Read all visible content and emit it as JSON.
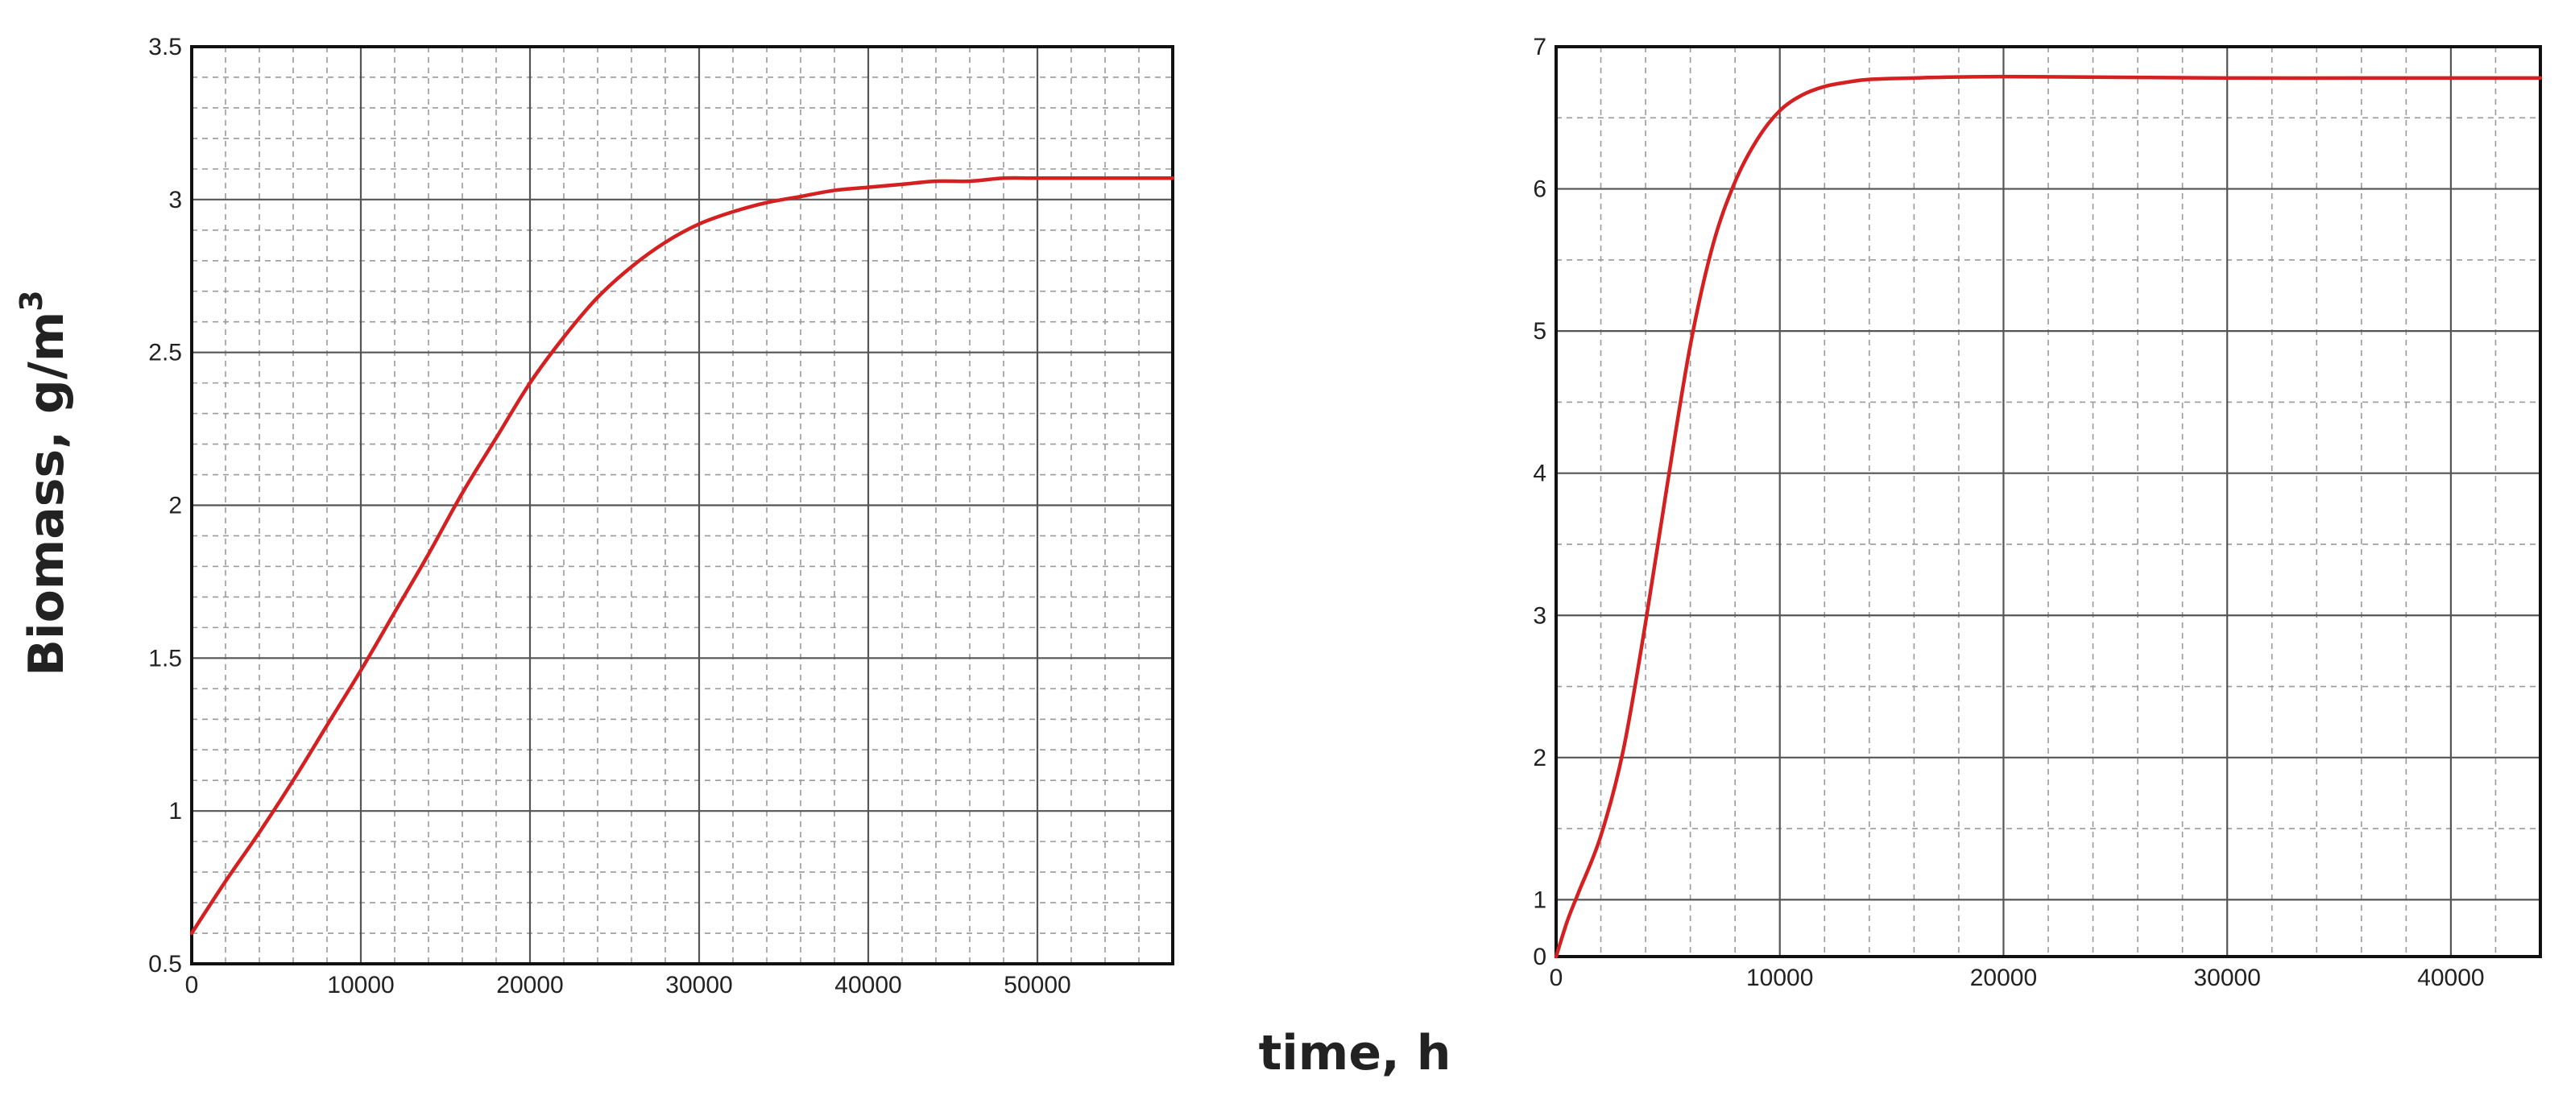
{
  "figure": {
    "ylabel_main": "Biomass, g/m",
    "ylabel_sup": "3",
    "xlabel": "time, h"
  },
  "chart_data": [
    {
      "type": "line",
      "title": "",
      "xlabel": "time, h",
      "ylabel": "Biomass, g/m3",
      "xlim": [
        0,
        58000
      ],
      "ylim": [
        0.5,
        3.5
      ],
      "xticks": [
        0,
        10000,
        20000,
        30000,
        40000,
        50000
      ],
      "yticks": [
        0.5,
        1,
        1.5,
        2,
        2.5,
        3,
        3.5
      ],
      "xtick_labels": [
        "0",
        "10000",
        "20000",
        "30000",
        "40000",
        "50000"
      ],
      "ytick_labels": [
        "0.5",
        "1",
        "1.5",
        "2",
        "2.5",
        "3",
        "3.5"
      ],
      "grid": true,
      "minor_grid_x": 2000,
      "minor_grid_y": 0.1,
      "line_color": "#d42020",
      "series": [
        {
          "x": [
            0,
            2000,
            4000,
            6000,
            8000,
            10000,
            12000,
            14000,
            16000,
            18000,
            20000,
            22000,
            24000,
            26000,
            28000,
            30000,
            32000,
            34000,
            36000,
            38000,
            40000,
            42000,
            44000,
            46000,
            48000,
            50000,
            54000,
            58000
          ],
          "y": [
            0.6,
            0.77,
            0.93,
            1.1,
            1.28,
            1.46,
            1.65,
            1.84,
            2.04,
            2.22,
            2.4,
            2.55,
            2.68,
            2.78,
            2.86,
            2.92,
            2.96,
            2.99,
            3.01,
            3.03,
            3.04,
            3.05,
            3.06,
            3.06,
            3.07,
            3.07,
            3.07,
            3.07
          ]
        }
      ]
    },
    {
      "type": "line",
      "title": "",
      "xlabel": "time, h",
      "ylabel": "Biomass, g/m3",
      "xlim": [
        0,
        44000
      ],
      "ylim": [
        0.6,
        7
      ],
      "xticks": [
        0,
        10000,
        20000,
        30000,
        40000
      ],
      "yticks": [
        1,
        2,
        3,
        4,
        5,
        6,
        7
      ],
      "xtick_labels": [
        "0",
        "10000",
        "20000",
        "30000",
        "40000"
      ],
      "ytick_labels": [
        "1",
        "2",
        "3",
        "4",
        "5",
        "6",
        "7"
      ],
      "ytick_extra_label": "0",
      "grid": true,
      "minor_grid_x": 2000,
      "minor_grid_y": 0.5,
      "line_color": "#d42020",
      "series": [
        {
          "x": [
            0,
            500,
            1000,
            2000,
            3000,
            4000,
            5000,
            6000,
            7000,
            8000,
            9000,
            10000,
            11000,
            12000,
            13000,
            14000,
            16000,
            20000,
            30000,
            40000,
            44000
          ],
          "y": [
            0.6,
            0.85,
            1.05,
            1.45,
            2.05,
            2.95,
            3.95,
            4.9,
            5.6,
            6.05,
            6.35,
            6.55,
            6.66,
            6.72,
            6.75,
            6.77,
            6.78,
            6.79,
            6.78,
            6.78,
            6.78
          ]
        }
      ]
    }
  ]
}
